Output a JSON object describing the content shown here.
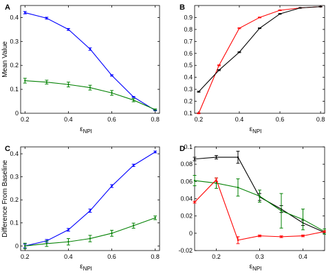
{
  "chart_data": [
    {
      "panel": "A",
      "type": "line",
      "ylabel": "Mean Value",
      "xlabel": "",
      "xlim": [
        0.18,
        0.82
      ],
      "ylim": [
        0,
        0.45
      ],
      "xticks": [
        "0.2",
        "0.4",
        "0.6",
        "0.8"
      ],
      "yticks": [
        "0",
        "0.1",
        "0.2",
        "0.3",
        "0.4"
      ],
      "series": [
        {
          "color": "#0000ff",
          "x": [
            0.2,
            0.3,
            0.4,
            0.5,
            0.6,
            0.7,
            0.8
          ],
          "values": [
            0.42,
            0.397,
            0.35,
            0.268,
            0.158,
            0.068,
            0.012
          ],
          "err": [
            0.005,
            0.004,
            0.004,
            0.005,
            0.003,
            0.002,
            0.002
          ]
        },
        {
          "color": "#008000",
          "x": [
            0.2,
            0.3,
            0.4,
            0.5,
            0.6,
            0.7,
            0.8
          ],
          "values": [
            0.136,
            0.13,
            0.12,
            0.107,
            0.085,
            0.055,
            0.015
          ],
          "err": [
            0.01,
            0.008,
            0.01,
            0.01,
            0.01,
            0.007,
            0.003
          ]
        }
      ]
    },
    {
      "panel": "B",
      "type": "line",
      "ylabel": "",
      "xlabel": "",
      "xlim": [
        0.18,
        0.82
      ],
      "ylim": [
        0.1,
        1.0
      ],
      "xticks": [
        "0.2",
        "0.4",
        "0.6",
        "0.8"
      ],
      "yticks": [
        "0.1",
        "0.2",
        "0.3",
        "0.4",
        "0.5",
        "0.6",
        "0.7",
        "0.8",
        "0.9"
      ],
      "series": [
        {
          "color": "#ff0000",
          "x": [
            0.2,
            0.3,
            0.4,
            0.5,
            0.6,
            0.7,
            0.8
          ],
          "values": [
            0.1,
            0.5,
            0.81,
            0.9,
            0.96,
            0.98,
            0.99
          ],
          "err": [
            0.004,
            0.004,
            0.004,
            0.003,
            0.003,
            0.002,
            0.002
          ]
        },
        {
          "color": "#000000",
          "x": [
            0.2,
            0.3,
            0.4,
            0.5,
            0.6,
            0.7,
            0.8
          ],
          "values": [
            0.28,
            0.46,
            0.61,
            0.81,
            0.93,
            0.98,
            0.99
          ],
          "err": [
            0.004,
            0.004,
            0.004,
            0.003,
            0.003,
            0.002,
            0.002
          ]
        }
      ]
    },
    {
      "panel": "C",
      "type": "line",
      "ylabel": "Difference From Baseline",
      "xlabel": "",
      "xlim": [
        0.18,
        0.82
      ],
      "ylim": [
        -0.02,
        0.43
      ],
      "xticks": [
        "0.2",
        "0.4",
        "0.6",
        "0.8"
      ],
      "yticks": [
        "0",
        "0.1",
        "0.2",
        "0.3",
        "0.4"
      ],
      "series": [
        {
          "color": "#0000ff",
          "x": [
            0.2,
            0.3,
            0.4,
            0.5,
            0.6,
            0.7,
            0.8
          ],
          "values": [
            0.0,
            0.022,
            0.07,
            0.153,
            0.26,
            0.35,
            0.408
          ],
          "err": [
            0.008,
            0.006,
            0.006,
            0.007,
            0.006,
            0.005,
            0.004
          ]
        },
        {
          "color": "#008000",
          "x": [
            0.2,
            0.3,
            0.4,
            0.5,
            0.6,
            0.7,
            0.8
          ],
          "values": [
            0.0,
            0.01,
            0.018,
            0.032,
            0.055,
            0.088,
            0.122
          ],
          "err": [
            0.012,
            0.012,
            0.014,
            0.014,
            0.013,
            0.011,
            0.008
          ]
        }
      ]
    },
    {
      "panel": "D",
      "type": "line",
      "ylabel": "",
      "xlabel": "",
      "xlim": [
        0.15,
        0.45
      ],
      "ylim": [
        -0.02,
        0.1
      ],
      "xticks": [
        "0.2",
        "0.3",
        "0.4"
      ],
      "yticks": [
        "-0.02",
        "0",
        "0.02",
        "0.04",
        "0.06",
        "0.08",
        "0.1"
      ],
      "series": [
        {
          "color": "#000000",
          "x": [
            0.15,
            0.2,
            0.25,
            0.3,
            0.35,
            0.4,
            0.45
          ],
          "values": [
            0.086,
            0.088,
            0.088,
            0.042,
            0.028,
            0.012,
            0.001
          ],
          "err": [
            0.002,
            0.002,
            0.007,
            0.004,
            0.004,
            0.003,
            0.002
          ]
        },
        {
          "color": "#008000",
          "x": [
            0.15,
            0.2,
            0.25,
            0.3,
            0.35,
            0.4,
            0.45
          ],
          "values": [
            0.061,
            0.058,
            0.053,
            0.043,
            0.026,
            0.016,
            0.002
          ],
          "err": [
            0.006,
            0.006,
            0.01,
            0.007,
            0.02,
            0.012,
            0.003
          ]
        },
        {
          "color": "#ff0000",
          "x": [
            0.15,
            0.2,
            0.25,
            0.3,
            0.35,
            0.4,
            0.45
          ],
          "values": [
            0.036,
            0.062,
            -0.008,
            -0.003,
            -0.004,
            -0.003,
            0.002
          ],
          "err": [
            0.001,
            0.002,
            0.004,
            0.001,
            0.001,
            0.001,
            0.001
          ]
        }
      ]
    }
  ],
  "shared_xlabel": {
    "main": "ε",
    "sub": "NPI"
  }
}
